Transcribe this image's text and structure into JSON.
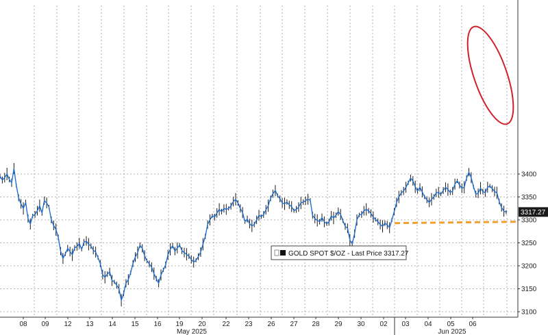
{
  "chart_data": {
    "type": "line",
    "title": "",
    "xlabel": "",
    "ylabel": "",
    "ylim": [
      3100,
      3430
    ],
    "y_ticks": [
      3100,
      3150,
      3200,
      3250,
      3300,
      3350,
      3400
    ],
    "y_tick_labels": [
      "3100",
      "3150",
      "3200",
      "3250",
      "3300",
      "3350",
      "3400"
    ],
    "x_tick_labels": [
      "08",
      "09",
      "12",
      "13",
      "14",
      "15",
      "16",
      "19",
      "20",
      "22",
      "23",
      "26",
      "27",
      "28",
      "29",
      "30",
      "02",
      "03",
      "04",
      "05",
      "06"
    ],
    "month_labels": [
      "May 2025",
      "Jun 2025"
    ],
    "grid": true,
    "legend_position": "bottom-center",
    "legend_label": "GOLD SPOT $/OZ - Last Price 3317.27",
    "last_value_label": "3317.27",
    "last_value": 3317.27,
    "line_color": "#1f6fd1",
    "annotation_color": "#d0202a",
    "support_color": "#f0a030",
    "support_line": {
      "y_start": 3293,
      "y_end": 3296
    },
    "series": [
      {
        "values": [
          3395,
          3387,
          3392,
          3400,
          3388,
          3381,
          3412,
          3375,
          3348,
          3335,
          3325,
          3338,
          3303,
          3291,
          3309,
          3312,
          3320,
          3331,
          3315,
          3342,
          3337,
          3328,
          3300,
          3288,
          3279,
          3262,
          3232,
          3216,
          3226,
          3238,
          3231,
          3224,
          3239,
          3242,
          3249,
          3236,
          3251,
          3254,
          3247,
          3243,
          3234,
          3230,
          3218,
          3205,
          3181,
          3175,
          3182,
          3187,
          3168,
          3165,
          3158,
          3150,
          3125,
          3140,
          3162,
          3170,
          3185,
          3205,
          3219,
          3229,
          3245,
          3238,
          3222,
          3211,
          3204,
          3197,
          3183,
          3172,
          3162,
          3180,
          3191,
          3202,
          3224,
          3236,
          3244,
          3232,
          3239,
          3245,
          3233,
          3229,
          3225,
          3221,
          3214,
          3208,
          3212,
          3220,
          3230,
          3247,
          3264,
          3290,
          3300,
          3309,
          3306,
          3315,
          3323,
          3318,
          3325,
          3323,
          3325,
          3330,
          3340,
          3345,
          3337,
          3325,
          3316,
          3296,
          3302,
          3292,
          3287,
          3290,
          3300,
          3310,
          3307,
          3312,
          3322,
          3331,
          3347,
          3357,
          3364,
          3353,
          3346,
          3337,
          3335,
          3339,
          3333,
          3329,
          3320,
          3323,
          3328,
          3337,
          3339,
          3342,
          3345,
          3343,
          3310,
          3303,
          3299,
          3296,
          3305,
          3296,
          3292,
          3295,
          3309,
          3304,
          3310,
          3318,
          3312,
          3298,
          3286,
          3282,
          3256,
          3248,
          3270,
          3300,
          3311,
          3312,
          3320,
          3323,
          3320,
          3314,
          3306,
          3301,
          3296,
          3290,
          3286,
          3293,
          3289,
          3283,
          3300,
          3318,
          3338,
          3350,
          3359,
          3363,
          3371,
          3381,
          3391,
          3385,
          3372,
          3363,
          3371,
          3361,
          3350,
          3344,
          3338,
          3345,
          3350,
          3359,
          3360,
          3356,
          3364,
          3371,
          3366,
          3360,
          3363,
          3378,
          3385,
          3376,
          3369,
          3371,
          3391,
          3404,
          3392,
          3372,
          3356,
          3358,
          3369,
          3362,
          3359,
          3371,
          3374,
          3368,
          3362,
          3359,
          3340,
          3327,
          3319,
          3317
        ]
      }
    ]
  }
}
